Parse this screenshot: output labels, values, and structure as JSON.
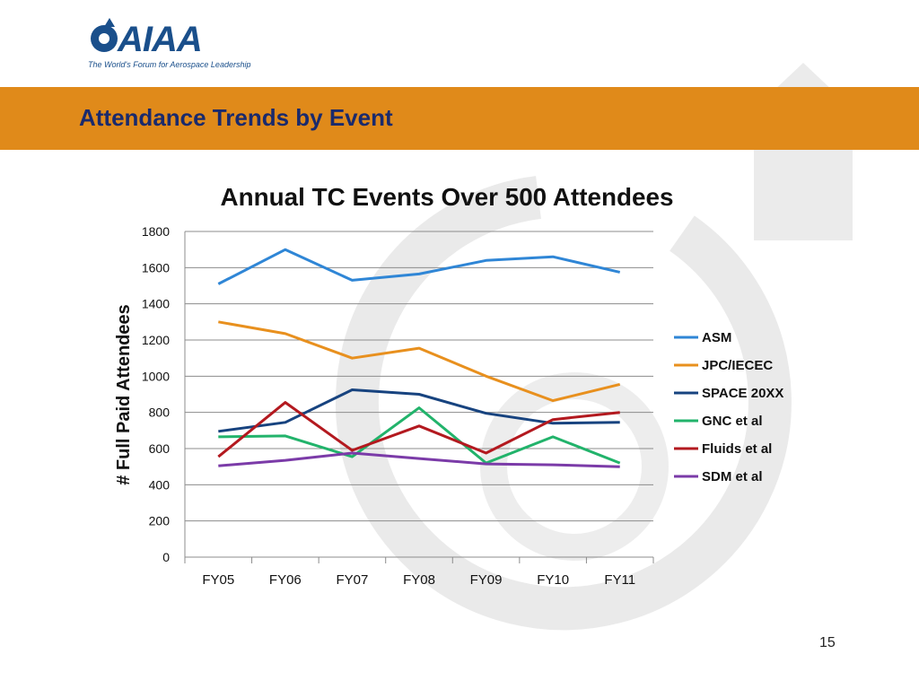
{
  "header": {
    "logo_text": "AIAA",
    "logo_tagline": "The World's Forum for Aerospace Leadership",
    "title": "Attendance Trends by Event"
  },
  "colors": {
    "banner": "#e08a1a",
    "title_text": "#1a2a6c",
    "brand": "#1a4f8b"
  },
  "chart_data": {
    "type": "line",
    "title": "Annual TC Events Over 500 Attendees",
    "xlabel": "",
    "ylabel": "# Full Paid Attendees",
    "categories": [
      "FY05",
      "FY06",
      "FY07",
      "FY08",
      "FY09",
      "FY10",
      "FY11"
    ],
    "ylim": [
      0,
      1800
    ],
    "yticks": [
      0,
      200,
      400,
      600,
      800,
      1000,
      1200,
      1400,
      1600,
      1800
    ],
    "grid": true,
    "legend_position": "right",
    "series": [
      {
        "name": "ASM",
        "color": "#2f86d6",
        "values": [
          1510,
          1700,
          1530,
          1565,
          1640,
          1660,
          1575
        ]
      },
      {
        "name": "JPC/IECEC",
        "color": "#e8901e",
        "values": [
          1300,
          1235,
          1100,
          1155,
          1000,
          865,
          955
        ]
      },
      {
        "name": "SPACE 20XX",
        "color": "#17437f",
        "values": [
          695,
          745,
          925,
          900,
          795,
          740,
          745
        ]
      },
      {
        "name": "GNC et al",
        "color": "#22b36b",
        "values": [
          665,
          670,
          555,
          825,
          520,
          665,
          520
        ]
      },
      {
        "name": "Fluids et al",
        "color": "#b3191f",
        "values": [
          555,
          855,
          590,
          725,
          575,
          760,
          800
        ]
      },
      {
        "name": "SDM et al",
        "color": "#7b3ba8",
        "values": [
          505,
          535,
          575,
          545,
          515,
          510,
          500
        ]
      }
    ]
  },
  "footer": {
    "page_number": "15"
  }
}
